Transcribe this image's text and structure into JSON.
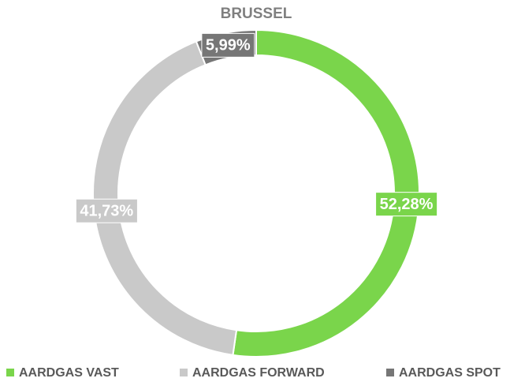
{
  "chart_data": {
    "type": "donut",
    "title": "BRUSSEL",
    "categories": [
      "AARDGAS VAST",
      "AARDGAS FORWARD",
      "AARDGAS SPOT"
    ],
    "values": [
      52.28,
      41.73,
      5.99
    ],
    "value_labels": [
      "52,28%",
      "41,73%",
      "5,99%"
    ],
    "colors": [
      "#7ad54b",
      "#c9c9c9",
      "#767676"
    ],
    "legend": "bottom"
  }
}
